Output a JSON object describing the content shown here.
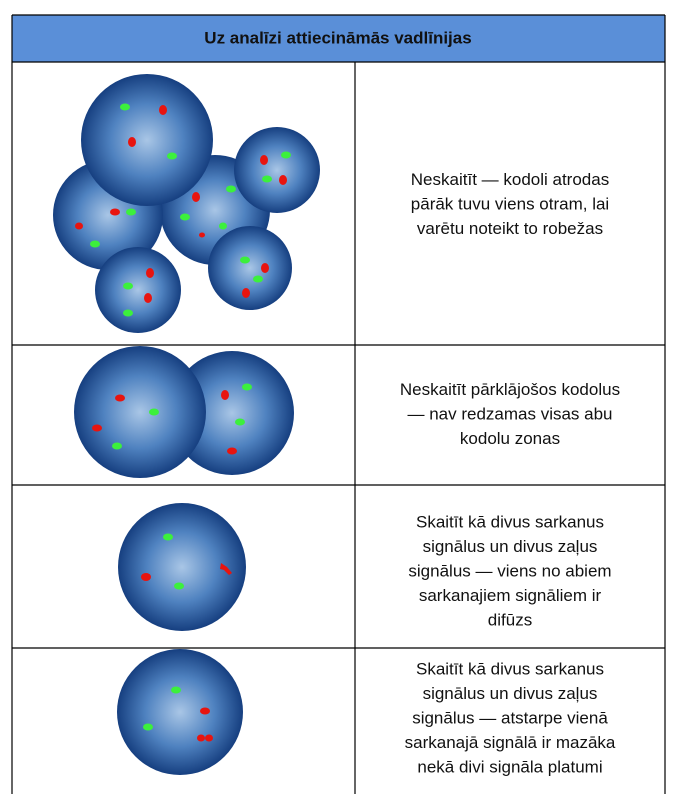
{
  "header": {
    "title": "Uz analīzi attiecināmās vadlīnijas"
  },
  "rows": [
    {
      "lines": [
        "Neskaitīt — kodoli atrodas",
        "pārāk tuvu viens otram, lai",
        "varētu noteikt to robežas"
      ]
    },
    {
      "lines": [
        "Neskaitīt pārklājošos kodolus",
        "— nav redzamas visas abu",
        "kodolu zonas"
      ]
    },
    {
      "lines": [
        "Skaitīt kā divus sarkanus",
        "signālus un divus zaļus",
        "signālus — viens no abiem",
        "sarkanajiem signāliem ir",
        "difūzs"
      ]
    },
    {
      "lines": [
        "Skaitīt kā divus sarkanus",
        "signālus un divus zaļus",
        "signālus — atstarpe vienā",
        "sarkanajā signālā ir mazāka",
        "nekā divi signāla platumi"
      ]
    }
  ]
}
